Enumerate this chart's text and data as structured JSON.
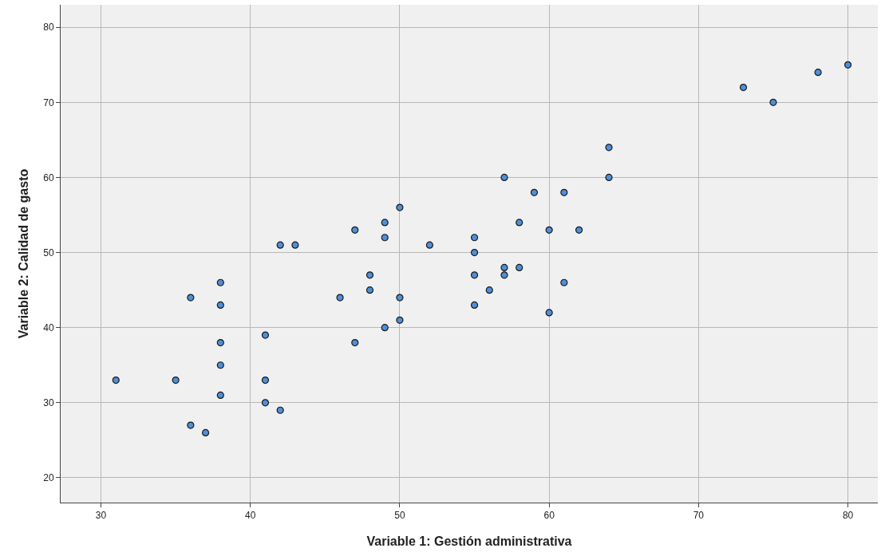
{
  "chart_data": {
    "type": "scatter",
    "xlabel": "Variable 1: Gestión administrativa",
    "ylabel": "Variable 2: Calidad de gasto",
    "x": [
      31,
      35,
      36,
      36,
      37,
      38,
      38,
      38,
      38,
      38,
      41,
      41,
      41,
      42,
      42,
      43,
      46,
      47,
      47,
      48,
      48,
      49,
      49,
      49,
      50,
      50,
      50,
      52,
      55,
      55,
      55,
      55,
      56,
      57,
      57,
      57,
      58,
      58,
      59,
      60,
      60,
      61,
      61,
      62,
      64,
      64,
      73,
      75,
      78,
      80
    ],
    "series": [
      {
        "color": "#4f8fd8",
        "values": [
          33,
          33,
          44,
          27,
          26,
          46,
          43,
          38,
          35,
          31,
          39,
          33,
          30,
          29,
          51,
          51,
          44,
          53,
          38,
          47,
          45,
          54,
          52,
          40,
          56,
          44,
          41,
          51,
          52,
          50,
          47,
          43,
          45,
          60,
          48,
          47,
          54,
          48,
          58,
          53,
          42,
          58,
          46,
          53,
          64,
          60,
          72,
          70,
          74,
          75
        ]
      }
    ],
    "xlim": [
      27.3,
      82
    ],
    "xticks": [
      30,
      40,
      50,
      60,
      70,
      80
    ],
    "ylim": [
      16.7,
      83
    ],
    "yticks": [
      20,
      30,
      40,
      50,
      60,
      70,
      80
    ],
    "grid": true,
    "marker": "circle"
  }
}
